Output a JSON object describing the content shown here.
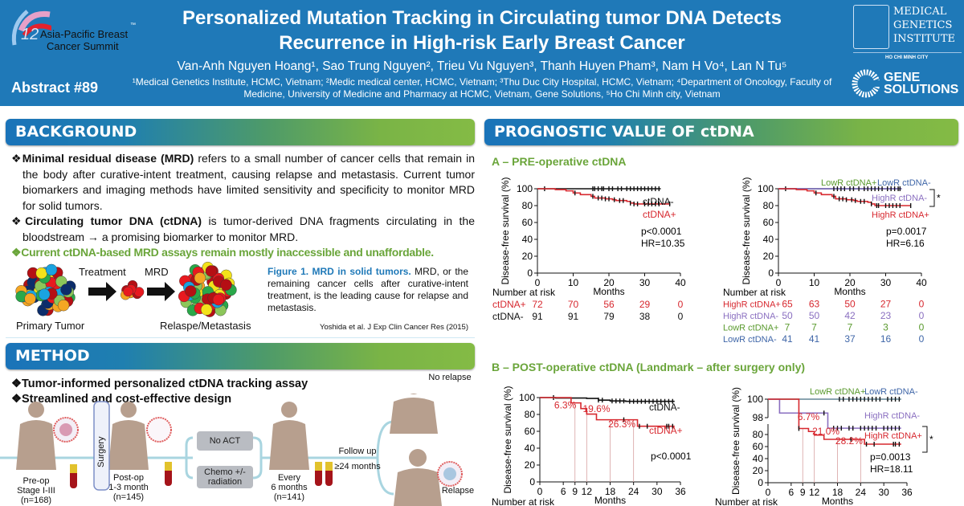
{
  "header": {
    "title_line1": "Personalized Mutation Tracking in Circulating tumor DNA Detects",
    "title_line2": "Recurrence in High-risk Early Breast Cancer",
    "authors": "Van-Anh Nguyen Hoang¹, Sao Trung Nguyen², Trieu Vu Nguyen³, Thanh Huyen Pham³, Nam H Vo⁴, Lan N Tu⁵",
    "affiliations": "¹Medical Genetics Institute, HCMC, Vietnam; ²Medic medical center, HCMC, Vietnam; ³Thu Duc City Hospital, HCMC, Vietnam; ⁴Department of Oncology, Faculty of Medicine, University of Medicine and Pharmacy at HCMC, Vietnam, Gene Solutions, ⁵Ho Chi Minh city, Vietnam",
    "abstract": "Abstract #89",
    "logo_left": {
      "number": "12",
      "line1": "Asia-Pacific Breast",
      "line2": "Cancer Summit",
      "tm": "™"
    },
    "logo_mgi": {
      "line1": "MEDICAL",
      "line2": "GENETICS",
      "line3": "INSTITUTE",
      "city": "HO CHI MINH CITY"
    },
    "logo_gs": {
      "line1": "GENE",
      "line2": "SOLUTIONS"
    },
    "colors": {
      "header": "#1f79b8",
      "accent_green": "#6aa53a"
    }
  },
  "background": {
    "heading": "BACKGROUND",
    "bullet1_bold": "Minimal residual disease (MRD)",
    "bullet1_text": " refers to a small number of cancer cells that remain in the body after curative-intent treatment, causing relapse and metastasis. Current tumor biomarkers and imaging methods have limited sensitivity and specificity to monitor MRD for solid tumors.",
    "bullet2_bold": "Circulating tumor DNA (ctDNA)",
    "bullet2_text": " is tumor-derived DNA fragments circulating in the bloodstream → a promising biomarker to monitor MRD.",
    "bullet3": "Current ctDNA-based MRD assays remain mostly inaccessible and unaffordable",
    "bullet_symbol": "❖",
    "figure": {
      "treatment": "Treatment",
      "mrd": "MRD",
      "primary": "Primary Tumor",
      "relapse": "Relaspe/Metastasis",
      "caption_bold": "Figure 1. MRD in solid tumors.",
      "caption_text": " MRD, or the remaining cancer cells after curative-intent treatment, is the leading cause for relapse and metastasis.",
      "citation": "Yoshida et al. J Exp Clin Cancer Res (2015)",
      "cell_colors": [
        "#e8191f",
        "#b50f14",
        "#f3e21a",
        "#8cc65a",
        "#1aa3e0",
        "#f5a623",
        "#0c2d6b",
        "#2aa84a"
      ]
    }
  },
  "method": {
    "heading": "METHOD",
    "bullet1": "Tumor-informed personalized ctDNA tracking assay",
    "bullet2": "Streamlined and cost-effective design",
    "preop": "Pre-op\nStage I-III\n(n=168)",
    "surgery": "Surgery",
    "postop": "Post-op\n1-3 month\n(n=145)",
    "no_act": "No ACT",
    "chemo": "Chemo +/-\nradiation",
    "every": "Every\n6 months\n(n=141)",
    "follow": "Follow up",
    "months24": "≥24 months",
    "no_relapse": "No relapse",
    "relapse": "Relapse"
  },
  "prognostic": {
    "heading": "PROGNOSTIC VALUE OF ctDNA",
    "sub_a": "A – PRE-operative ctDNA",
    "sub_b": "B – POST-operative ctDNA (Landmark – after surgery only)"
  },
  "chart_data": [
    {
      "type": "line",
      "id": "a1",
      "ylabel": "Disease-free survival (%)",
      "xlabel": "Months",
      "xlim": [
        0,
        40
      ],
      "ylim": [
        0,
        100
      ],
      "xticks": [
        0,
        10,
        20,
        30,
        40
      ],
      "yticks": [
        0,
        20,
        40,
        60,
        80,
        100
      ],
      "stats": [
        "p<0.0001",
        "HR=10.35"
      ],
      "series": [
        {
          "name": "ctDNA-",
          "color": "#111111",
          "steps": [
            [
              0,
              100
            ],
            [
              34.5,
              100
            ]
          ],
          "censor": [
            2,
            15.5,
            16,
            17,
            18,
            18.5,
            20,
            21,
            22.5,
            23.5,
            25,
            26,
            27,
            28,
            29,
            30,
            31,
            32,
            33,
            34
          ]
        },
        {
          "name": "ctDNA+",
          "color": "#d7282f",
          "steps": [
            [
              0,
              100
            ],
            [
              5,
              99
            ],
            [
              8,
              97.5
            ],
            [
              10,
              95
            ],
            [
              12,
              93
            ],
            [
              15,
              91
            ],
            [
              16,
              89
            ],
            [
              19,
              88
            ],
            [
              21,
              87
            ],
            [
              22,
              86
            ],
            [
              25,
              85
            ],
            [
              26,
              83
            ],
            [
              27,
              82
            ],
            [
              37,
              82
            ]
          ],
          "censor": [
            10.5,
            15.5,
            17,
            18,
            19,
            20,
            21.5,
            23,
            24,
            26,
            27,
            28,
            30,
            31,
            32,
            33,
            34,
            37
          ]
        }
      ],
      "risk_title": "Number at risk",
      "risk": [
        {
          "label": "ctDNA+",
          "color": "#d7282f",
          "values": [
            72,
            70,
            56,
            29,
            0
          ]
        },
        {
          "label": "ctDNA-",
          "color": "#111111",
          "values": [
            91,
            91,
            79,
            38,
            0
          ]
        }
      ]
    },
    {
      "type": "line",
      "id": "a2",
      "ylabel": "Disease-free survival (%)",
      "xlabel": "Months",
      "xlim": [
        0,
        40
      ],
      "ylim": [
        0,
        100
      ],
      "xticks": [
        0,
        10,
        20,
        30,
        40
      ],
      "yticks": [
        0,
        20,
        40,
        60,
        80,
        100
      ],
      "stats": [
        "p=0.0017",
        "HR=6.16"
      ],
      "bracket": "*",
      "series": [
        {
          "name": "LowR ctDNA+",
          "color": "#5a9a2e",
          "steps": [
            [
              0,
              100
            ],
            [
              34.5,
              100
            ]
          ],
          "censor": []
        },
        {
          "name": "LowR ctDNA-",
          "color": "#3f66a8",
          "steps": [
            [
              0,
              100
            ],
            [
              34.5,
              100
            ]
          ],
          "censor": []
        },
        {
          "name": "HighR ctDNA-",
          "color": "#8a6fc0",
          "steps": [
            [
              0,
              100
            ],
            [
              34.5,
              100
            ]
          ],
          "censor": [
            2,
            15.5,
            16.5,
            17.5,
            18.5,
            20,
            21,
            22.5,
            24,
            25,
            26,
            27,
            28,
            29,
            30.5,
            31.5,
            32.5,
            33.5,
            34
          ]
        },
        {
          "name": "HighR ctDNA+",
          "color": "#d7282f",
          "steps": [
            [
              0,
              100
            ],
            [
              5,
              99
            ],
            [
              8,
              97.5
            ],
            [
              10,
              95
            ],
            [
              12,
              93
            ],
            [
              15,
              91
            ],
            [
              16,
              88
            ],
            [
              19,
              87
            ],
            [
              21,
              86
            ],
            [
              22,
              85
            ],
            [
              25,
              84
            ],
            [
              26,
              82
            ],
            [
              27,
              80
            ],
            [
              37,
              80
            ]
          ],
          "censor": [
            10.5,
            15.5,
            17,
            18,
            19,
            20.5,
            21.5,
            23,
            24,
            26,
            27.5,
            28,
            30,
            31,
            32,
            33,
            34,
            37
          ]
        }
      ],
      "risk_title": "Number at risk",
      "risk": [
        {
          "label": "HighR ctDNA+",
          "color": "#d7282f",
          "values": [
            65,
            63,
            50,
            27,
            0
          ]
        },
        {
          "label": "HighR ctDNA-",
          "color": "#8a6fc0",
          "values": [
            50,
            50,
            42,
            23,
            0
          ]
        },
        {
          "label": "LowR ctDNA+",
          "color": "#5a9a2e",
          "values": [
            7,
            7,
            7,
            3,
            0
          ]
        },
        {
          "label": "LowR ctDNA-",
          "color": "#3f66a8",
          "values": [
            41,
            41,
            37,
            16,
            0
          ]
        }
      ]
    },
    {
      "type": "line",
      "id": "b1",
      "ylabel": "Disease-free survival (%)",
      "xlabel": "Months",
      "xlim": [
        0,
        36
      ],
      "ylim": [
        0,
        100
      ],
      "xticks": [
        0,
        6,
        9,
        12,
        18,
        24,
        30,
        36
      ],
      "yticks": [
        0,
        20,
        40,
        60,
        80,
        100
      ],
      "stats": [
        "p<0.0001"
      ],
      "landmarks": [
        9,
        12,
        18,
        24
      ],
      "annotations": [
        {
          "text": "6.3%",
          "x": 6.5,
          "y": 87
        },
        {
          "text": "19.6%",
          "x": 14.5,
          "y": 83
        },
        {
          "text": "26.3%",
          "x": 21,
          "y": 65
        }
      ],
      "series": [
        {
          "name": "ctDNA-",
          "color": "#111111",
          "steps": [
            [
              0,
              100
            ],
            [
              4,
              99.5
            ],
            [
              12,
              99
            ],
            [
              15,
              97
            ],
            [
              18,
              96
            ],
            [
              22,
              95.5
            ],
            [
              34.5,
              95.5
            ]
          ],
          "censor": [
            3.5,
            15,
            16,
            18.5,
            19.5,
            20.5,
            21.5,
            23,
            24,
            25,
            26,
            27,
            28,
            29,
            30,
            31,
            32,
            33,
            34
          ]
        },
        {
          "name": "ctDNA+",
          "color": "#d7282f",
          "steps": [
            [
              0,
              100
            ],
            [
              8,
              93.7
            ],
            [
              10.5,
              87
            ],
            [
              12,
              80.4
            ],
            [
              14.5,
              73.7
            ],
            [
              25,
              66
            ],
            [
              34.5,
              66
            ]
          ],
          "censor": [
            21.5,
            25.5,
            27.5,
            32.5,
            33,
            34
          ]
        }
      ],
      "risk_title": "Number at risk"
    },
    {
      "type": "line",
      "id": "b2",
      "ylabel": "Disease-free survival (%)",
      "xlabel": "Months",
      "xlim": [
        0,
        36
      ],
      "ylim": [
        0,
        100
      ],
      "y_axis_break": [
        87,
        98
      ],
      "xticks": [
        0,
        6,
        9,
        12,
        18,
        24,
        30,
        36
      ],
      "yticks": [
        0,
        20,
        40,
        60,
        80,
        98,
        100
      ],
      "stats": [
        "p=0.0013",
        "HR=18.11"
      ],
      "bracket": "*",
      "landmarks": [
        9,
        12,
        18,
        24
      ],
      "annotations": [
        {
          "text": "6.7%",
          "x": 10.5,
          "y": 86.5
        },
        {
          "text": "21.0%",
          "x": 15,
          "y": 80
        },
        {
          "text": "28.2%",
          "x": 21,
          "y": 64
        }
      ],
      "series": [
        {
          "name": "LowR ctDNA+",
          "color": "#5a9a2e",
          "steps": [
            [
              0,
              100
            ],
            [
              34.5,
              100
            ]
          ],
          "censor": []
        },
        {
          "name": "LowR ctDNA-",
          "color": "#7f96b8",
          "steps": [
            [
              0,
              100
            ],
            [
              34.5,
              100
            ]
          ],
          "censor": [
            18.5,
            19.5,
            21,
            22,
            23,
            24,
            25,
            26,
            27,
            28,
            29,
            31,
            32,
            33,
            34
          ]
        },
        {
          "name": "HighR ctDNA-",
          "color": "#8a6fc0",
          "steps": [
            [
              0,
              100
            ],
            [
              3,
              98.5
            ],
            [
              15.5,
              90.5
            ],
            [
              34.5,
              90.5
            ]
          ],
          "censor": [
            14.5,
            17,
            18,
            19,
            21,
            22,
            24,
            25,
            26,
            27,
            28,
            30,
            31,
            32,
            33,
            34
          ]
        },
        {
          "name": "HighR ctDNA+",
          "color": "#d7282f",
          "steps": [
            [
              0,
              100
            ],
            [
              8,
              90
            ],
            [
              10.5,
              85
            ],
            [
              12,
              79
            ],
            [
              14.5,
              72
            ],
            [
              25,
              64
            ],
            [
              34.5,
              64
            ]
          ],
          "censor": [
            8,
            21.5,
            25.5,
            27.5,
            32.5,
            33,
            34
          ]
        }
      ],
      "risk_title": "Number at risk"
    }
  ]
}
